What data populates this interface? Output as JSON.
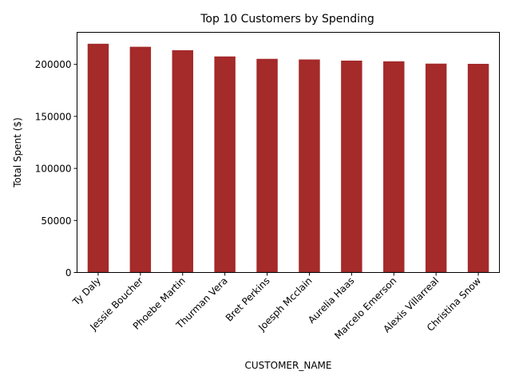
{
  "chart_data": {
    "type": "bar",
    "title": "Top 10 Customers by Spending",
    "xlabel": "CUSTOMER_NAME",
    "ylabel": "Total Spent ($)",
    "categories": [
      "Ty Daly",
      "Jessie Boucher",
      "Phoebe Martin",
      "Thurman Vera",
      "Bret Perkins",
      "Joesph Mcclain",
      "Aurelia Haas",
      "Marcelo Emerson",
      "Alexis Villarreal",
      "Christina Snow"
    ],
    "values": [
      219800,
      216900,
      213600,
      207600,
      205300,
      204700,
      203600,
      202900,
      200700,
      200500
    ],
    "ylim": [
      0,
      230790
    ],
    "yticks": [
      0,
      50000,
      100000,
      150000,
      200000
    ],
    "bar_color": "#a52a2a",
    "grid": false,
    "legend": "none"
  }
}
